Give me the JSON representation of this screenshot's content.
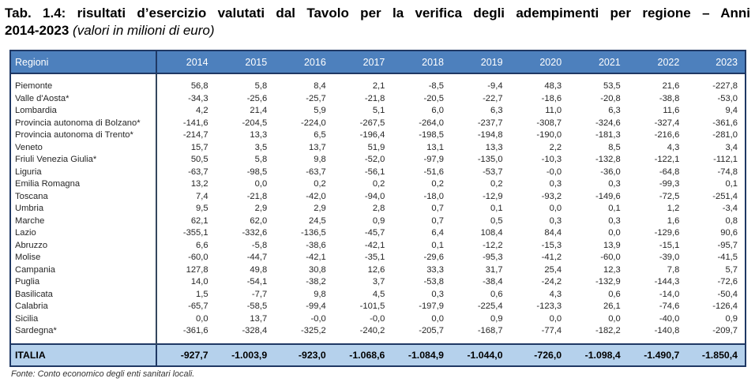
{
  "title": {
    "line1": "Tab. 1.4: risultati d’esercizio valutati dal Tavolo per la verifica degli adempimenti per regione – Anni",
    "line2_bold": "2014-2023 ",
    "line2_italic": "(valori in milioni di euro)"
  },
  "colors": {
    "header_bg": "#4d80bd",
    "header_text": "#ffffff",
    "border_navy": "#1f3864",
    "total_row_bg": "#b5d1ec",
    "body_text": "#262626"
  },
  "chart_data": {
    "type": "table",
    "title": "Tab. 1.4: risultati d’esercizio valutati dal Tavolo per la verifica degli adempimenti per regione – Anni 2014-2023 (valori in milioni di euro)",
    "region_header": "Regioni",
    "years": [
      "2014",
      "2015",
      "2016",
      "2017",
      "2018",
      "2019",
      "2020",
      "2021",
      "2022",
      "2023"
    ],
    "rows": [
      {
        "region": "Piemonte",
        "values": [
          "56,8",
          "5,8",
          "8,4",
          "2,1",
          "-8,5",
          "-9,4",
          "48,3",
          "53,5",
          "21,6",
          "-227,8"
        ]
      },
      {
        "region": "Valle d'Aosta*",
        "values": [
          "-34,3",
          "-25,6",
          "-25,7",
          "-21,8",
          "-20,5",
          "-22,7",
          "-18,6",
          "-20,8",
          "-38,8",
          "-53,0"
        ]
      },
      {
        "region": "Lombardia",
        "values": [
          "4,2",
          "21,4",
          "5,9",
          "5,1",
          "6,0",
          "6,3",
          "11,0",
          "6,3",
          "11,6",
          "9,4"
        ]
      },
      {
        "region": "Provincia autonoma di Bolzano*",
        "values": [
          "-141,6",
          "-204,5",
          "-224,0",
          "-267,5",
          "-264,0",
          "-237,7",
          "-308,7",
          "-324,6",
          "-327,4",
          "-361,6"
        ]
      },
      {
        "region": "Provincia autonoma di Trento*",
        "values": [
          "-214,7",
          "13,3",
          "6,5",
          "-196,4",
          "-198,5",
          "-194,8",
          "-190,0",
          "-181,3",
          "-216,6",
          "-281,0"
        ]
      },
      {
        "region": "Veneto",
        "values": [
          "15,7",
          "3,5",
          "13,7",
          "51,9",
          "13,1",
          "13,3",
          "2,2",
          "8,5",
          "4,3",
          "3,4"
        ]
      },
      {
        "region": "Friuli Venezia Giulia*",
        "values": [
          "50,5",
          "5,8",
          "9,8",
          "-52,0",
          "-97,9",
          "-135,0",
          "-10,3",
          "-132,8",
          "-122,1",
          "-112,1"
        ]
      },
      {
        "region": "Liguria",
        "values": [
          "-63,7",
          "-98,5",
          "-63,7",
          "-56,1",
          "-51,6",
          "-53,7",
          "-0,0",
          "-36,0",
          "-64,8",
          "-74,8"
        ]
      },
      {
        "region": "Emilia Romagna",
        "values": [
          "13,2",
          "0,0",
          "0,2",
          "0,2",
          "0,2",
          "0,2",
          "0,3",
          "0,3",
          "-99,3",
          "0,1"
        ]
      },
      {
        "region": "Toscana",
        "values": [
          "7,4",
          "-21,8",
          "-42,0",
          "-94,0",
          "-18,0",
          "-12,9",
          "-93,2",
          "-149,6",
          "-72,5",
          "-251,4"
        ]
      },
      {
        "region": "Umbria",
        "values": [
          "9,5",
          "2,9",
          "2,9",
          "2,8",
          "0,7",
          "0,1",
          "0,0",
          "0,1",
          "1,2",
          "-3,4"
        ]
      },
      {
        "region": "Marche",
        "values": [
          "62,1",
          "62,0",
          "24,5",
          "0,9",
          "0,7",
          "0,5",
          "0,3",
          "0,3",
          "1,6",
          "0,8"
        ]
      },
      {
        "region": "Lazio",
        "values": [
          "-355,1",
          "-332,6",
          "-136,5",
          "-45,7",
          "6,4",
          "108,4",
          "84,4",
          "0,0",
          "-129,6",
          "90,6"
        ]
      },
      {
        "region": "Abruzzo",
        "values": [
          "6,6",
          "-5,8",
          "-38,6",
          "-42,1",
          "0,1",
          "-12,2",
          "-15,3",
          "13,9",
          "-15,1",
          "-95,7"
        ]
      },
      {
        "region": "Molise",
        "values": [
          "-60,0",
          "-44,7",
          "-42,1",
          "-35,1",
          "-29,6",
          "-95,3",
          "-41,2",
          "-60,0",
          "-39,0",
          "-41,5"
        ]
      },
      {
        "region": "Campania",
        "values": [
          "127,8",
          "49,8",
          "30,8",
          "12,6",
          "33,3",
          "31,7",
          "25,4",
          "12,3",
          "7,8",
          "5,7"
        ]
      },
      {
        "region": "Puglia",
        "values": [
          "14,0",
          "-54,1",
          "-38,2",
          "3,7",
          "-53,8",
          "-38,4",
          "-24,2",
          "-132,9",
          "-144,3",
          "-72,6"
        ]
      },
      {
        "region": "Basilicata",
        "values": [
          "1,5",
          "-7,7",
          "9,8",
          "4,5",
          "0,3",
          "0,6",
          "4,3",
          "0,6",
          "-14,0",
          "-50,4"
        ]
      },
      {
        "region": "Calabria",
        "values": [
          "-65,7",
          "-58,5",
          "-99,4",
          "-101,5",
          "-197,9",
          "-225,4",
          "-123,3",
          "26,1",
          "-74,6",
          "-126,4"
        ]
      },
      {
        "region": "Sicilia",
        "values": [
          "0,0",
          "13,7",
          "-0,0",
          "-0,0",
          "0,0",
          "0,9",
          "0,0",
          "0,0",
          "-40,0",
          "0,9"
        ]
      },
      {
        "region": "Sardegna*",
        "values": [
          "-361,6",
          "-328,4",
          "-325,2",
          "-240,2",
          "-205,7",
          "-168,7",
          "-77,4",
          "-182,2",
          "-140,8",
          "-209,7"
        ]
      }
    ],
    "total": {
      "region": "ITALIA",
      "values": [
        "-927,7",
        "-1.003,9",
        "-923,0",
        "-1.068,6",
        "-1.084,9",
        "-1.044,0",
        "-726,0",
        "-1.098,4",
        "-1.490,7",
        "-1.850,4"
      ]
    }
  },
  "footer": {
    "source": "Fonte: Conto economico degli enti sanitari locali."
  }
}
